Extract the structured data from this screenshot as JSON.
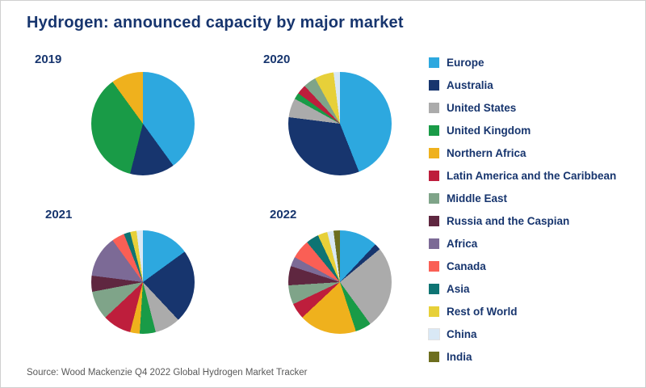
{
  "title": "Hydrogen: announced capacity by major market",
  "source": "Source: Wood Mackenzie Q4 2022 Global Hydrogen Market Tracker",
  "legend": [
    {
      "label": "Europe",
      "color": "#2da8df"
    },
    {
      "label": "Australia",
      "color": "#17356e"
    },
    {
      "label": "United States",
      "color": "#ababab"
    },
    {
      "label": "United Kingdom",
      "color": "#199b47"
    },
    {
      "label": "Northern Africa",
      "color": "#efb11d"
    },
    {
      "label": "Latin America and the Caribbean",
      "color": "#be1e3c"
    },
    {
      "label": "Middle East",
      "color": "#7fa489"
    },
    {
      "label": "Russia and the Caspian",
      "color": "#5f2740"
    },
    {
      "label": "Africa",
      "color": "#7c6a96"
    },
    {
      "label": "Canada",
      "color": "#fa5f55"
    },
    {
      "label": "Asia",
      "color": "#0e7473"
    },
    {
      "label": "Rest of World",
      "color": "#e7d039"
    },
    {
      "label": "China",
      "color": "#d9e8f5"
    },
    {
      "label": "India",
      "color": "#6d6e1e"
    }
  ],
  "chart_data": {
    "type": "pie",
    "title": "Hydrogen: announced capacity by major market",
    "unit": "percent share of announced capacity",
    "legend_position": "right",
    "charts": [
      {
        "year": "2019",
        "slices": [
          {
            "label": "Europe",
            "value": 40
          },
          {
            "label": "Australia",
            "value": 14
          },
          {
            "label": "United Kingdom",
            "value": 36
          },
          {
            "label": "Northern Africa",
            "value": 10
          }
        ]
      },
      {
        "year": "2020",
        "slices": [
          {
            "label": "Europe",
            "value": 44
          },
          {
            "label": "Australia",
            "value": 33
          },
          {
            "label": "United States",
            "value": 6
          },
          {
            "label": "United Kingdom",
            "value": 2
          },
          {
            "label": "Latin America and the Caribbean",
            "value": 3
          },
          {
            "label": "Middle East",
            "value": 4
          },
          {
            "label": "Rest of World",
            "value": 6
          },
          {
            "label": "China",
            "value": 2
          }
        ]
      },
      {
        "year": "2021",
        "slices": [
          {
            "label": "Europe",
            "value": 15
          },
          {
            "label": "Australia",
            "value": 23
          },
          {
            "label": "United States",
            "value": 8
          },
          {
            "label": "United Kingdom",
            "value": 5
          },
          {
            "label": "Northern Africa",
            "value": 3
          },
          {
            "label": "Latin America and the Caribbean",
            "value": 9
          },
          {
            "label": "Middle East",
            "value": 9
          },
          {
            "label": "Russia and the Caspian",
            "value": 5
          },
          {
            "label": "Africa",
            "value": 13
          },
          {
            "label": "Canada",
            "value": 4
          },
          {
            "label": "Asia",
            "value": 2
          },
          {
            "label": "Rest of World",
            "value": 2
          },
          {
            "label": "China",
            "value": 2
          }
        ]
      },
      {
        "year": "2022",
        "slices": [
          {
            "label": "Europe",
            "value": 12
          },
          {
            "label": "Australia",
            "value": 2
          },
          {
            "label": "United States",
            "value": 26
          },
          {
            "label": "United Kingdom",
            "value": 5
          },
          {
            "label": "Northern Africa",
            "value": 18
          },
          {
            "label": "Latin America and the Caribbean",
            "value": 5
          },
          {
            "label": "Middle East",
            "value": 6
          },
          {
            "label": "Russia and the Caspian",
            "value": 6
          },
          {
            "label": "Africa",
            "value": 3
          },
          {
            "label": "Canada",
            "value": 6
          },
          {
            "label": "Asia",
            "value": 4
          },
          {
            "label": "Rest of World",
            "value": 3
          },
          {
            "label": "China",
            "value": 2
          },
          {
            "label": "India",
            "value": 2
          }
        ]
      }
    ]
  }
}
